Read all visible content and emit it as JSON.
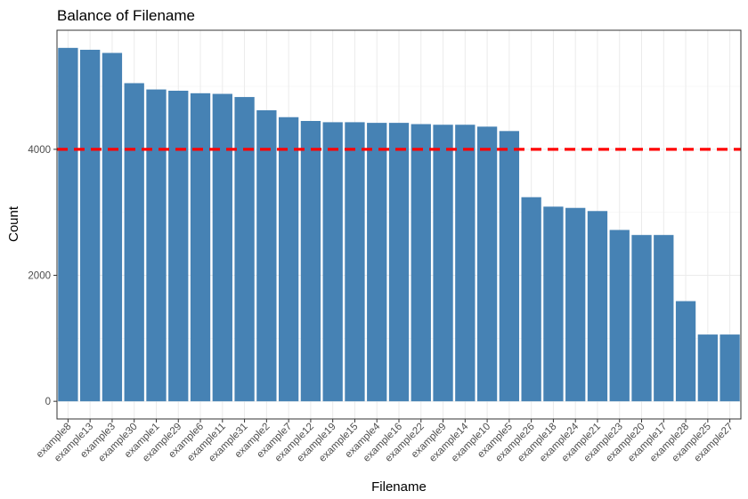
{
  "chart_data": {
    "type": "bar",
    "title": "Balance of Filename",
    "xlabel": "Filename",
    "ylabel": "Count",
    "categories": [
      "example8",
      "example13",
      "example3",
      "example30",
      "example1",
      "example29",
      "example6",
      "example11",
      "example31",
      "example2",
      "example7",
      "example12",
      "example19",
      "example15",
      "example4",
      "example16",
      "example22",
      "example9",
      "example14",
      "example10",
      "example5",
      "example26",
      "example18",
      "example24",
      "example21",
      "example23",
      "example20",
      "example17",
      "example28",
      "example25",
      "example27"
    ],
    "values": [
      5610,
      5580,
      5530,
      5050,
      4950,
      4930,
      4890,
      4880,
      4830,
      4620,
      4510,
      4450,
      4430,
      4430,
      4420,
      4420,
      4400,
      4390,
      4390,
      4360,
      4290,
      3240,
      3090,
      3070,
      3020,
      2720,
      2640,
      2640,
      1590,
      1060,
      1060
    ],
    "yticks": [
      0,
      2000,
      4000
    ],
    "ylim": [
      -280,
      5890
    ],
    "reference_line": {
      "value": 4000,
      "color": "#ff0000",
      "style": "dashed"
    },
    "bar_color": "#4682b4",
    "grid": true,
    "theme": "bw"
  }
}
